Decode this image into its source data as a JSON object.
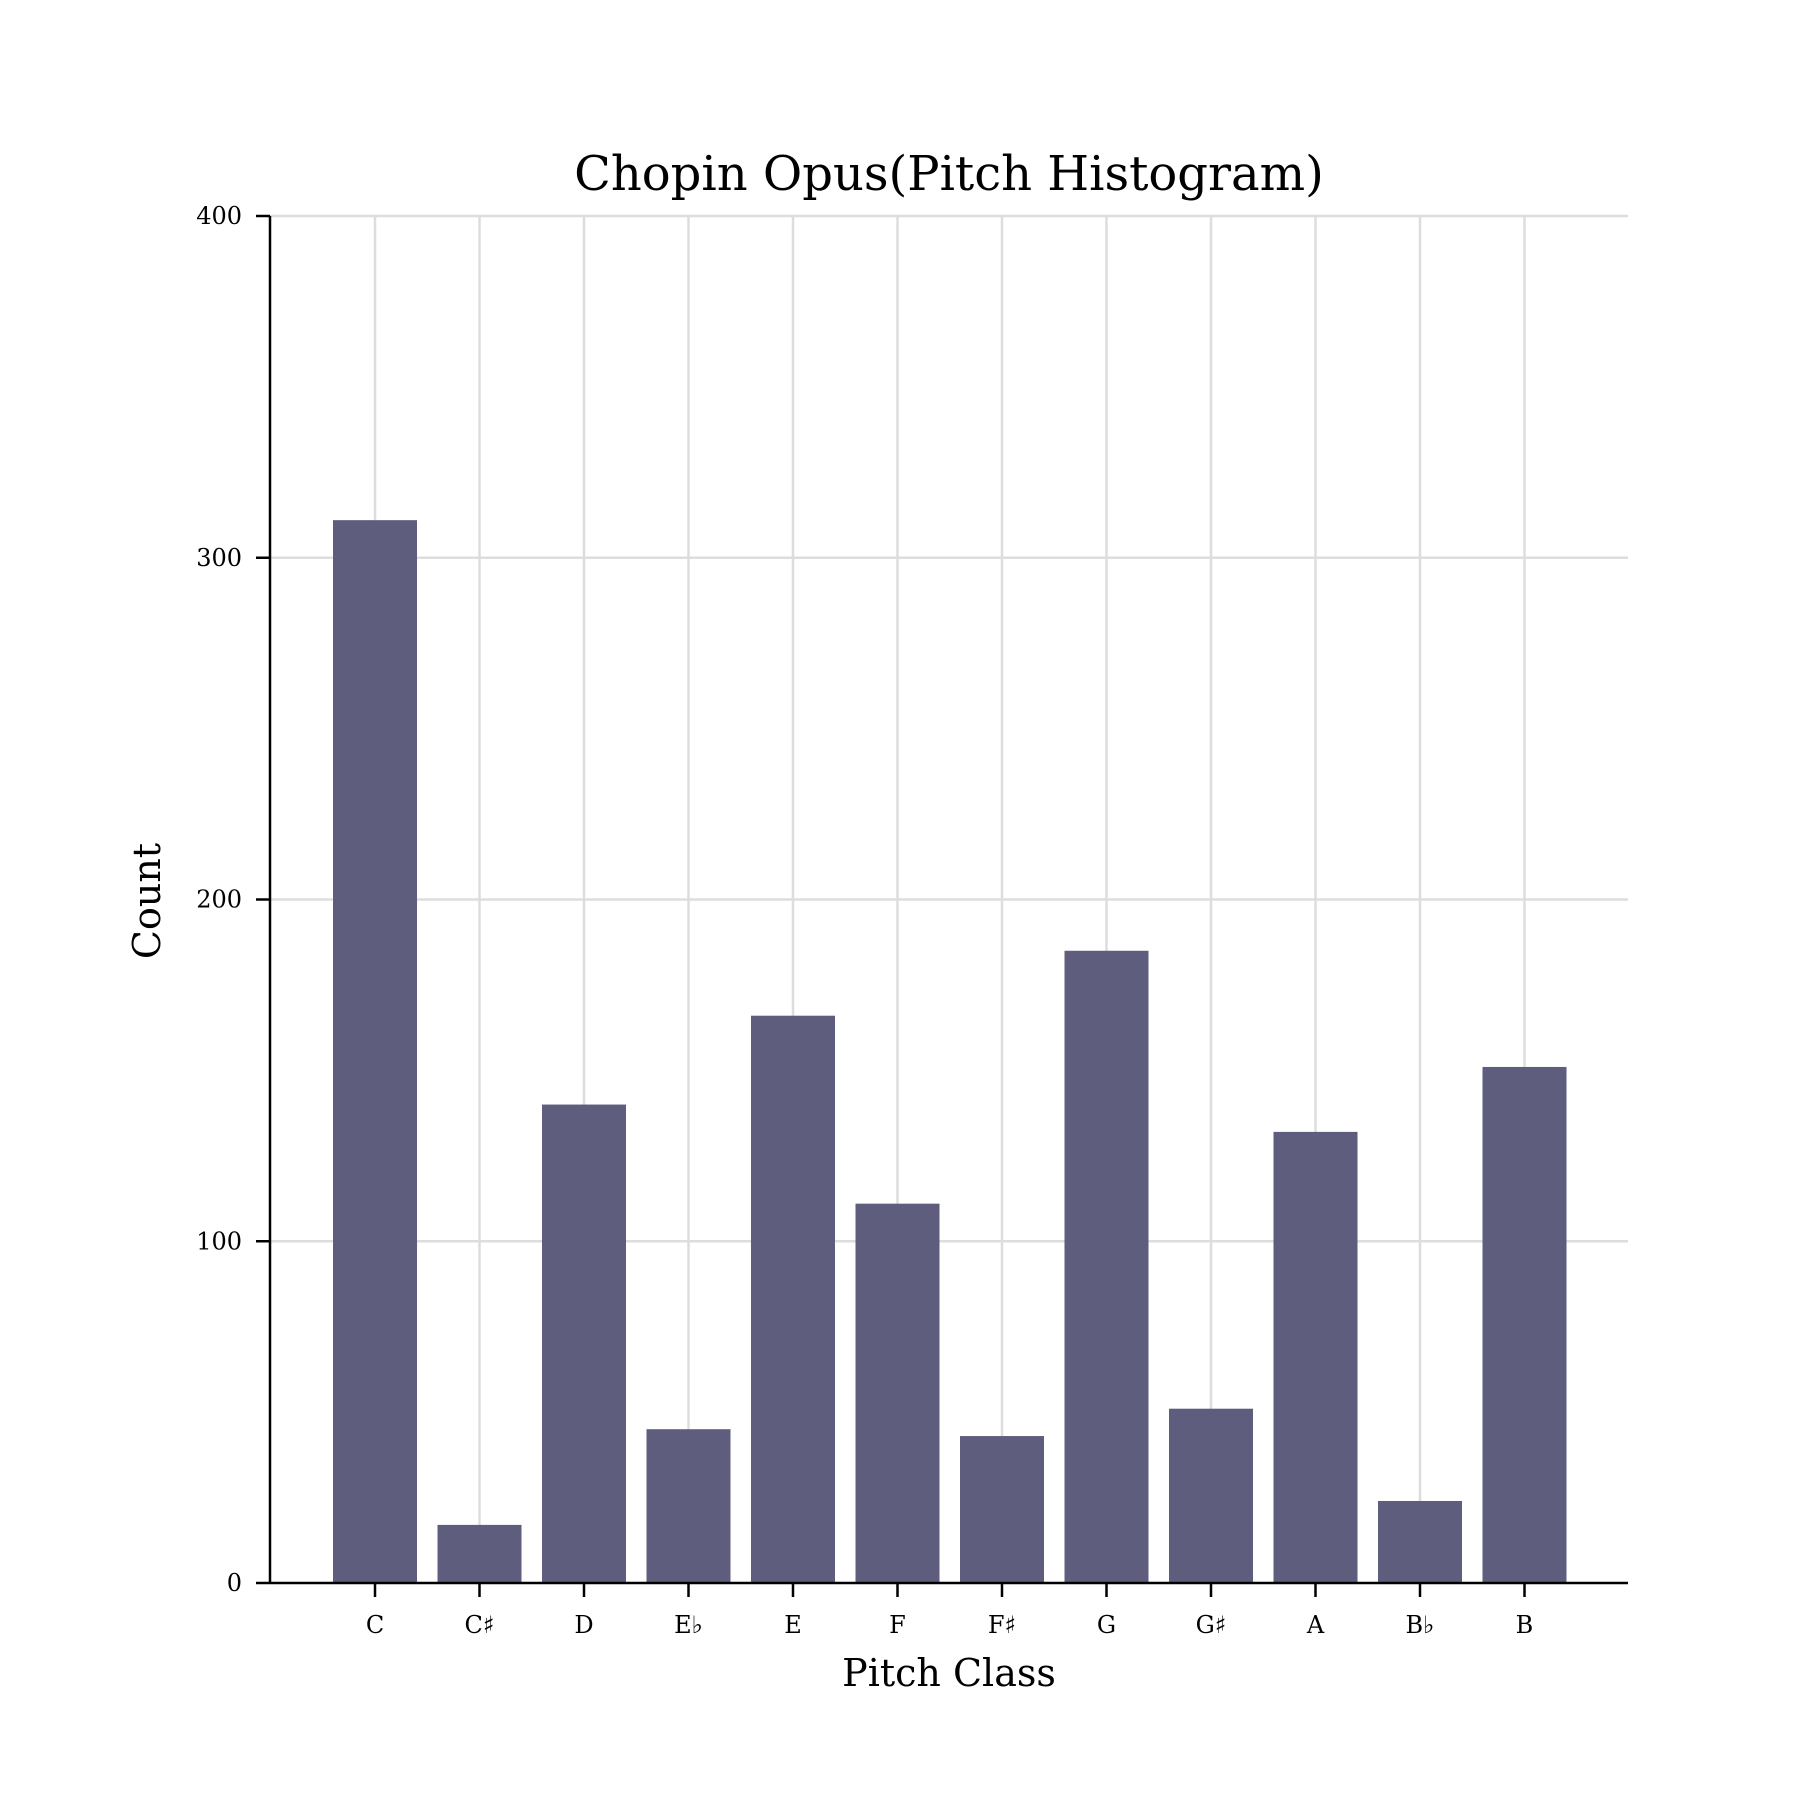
{
  "chart_data": {
    "type": "bar",
    "title": "Chopin Opus(Pitch Histogram)",
    "xlabel": "Pitch Class",
    "ylabel": "Count",
    "categories": [
      "C",
      "C♯",
      "D",
      "E♭",
      "E",
      "F",
      "F♯",
      "G",
      "G♯",
      "A",
      "B♭",
      "B"
    ],
    "values": [
      311,
      17,
      140,
      45,
      166,
      111,
      43,
      185,
      51,
      132,
      24,
      151
    ],
    "ylim": [
      0,
      400
    ],
    "yticks": [
      0,
      100,
      200,
      300,
      400
    ],
    "grid": true,
    "legend": "none",
    "bar_color": "#5f5d7d"
  }
}
